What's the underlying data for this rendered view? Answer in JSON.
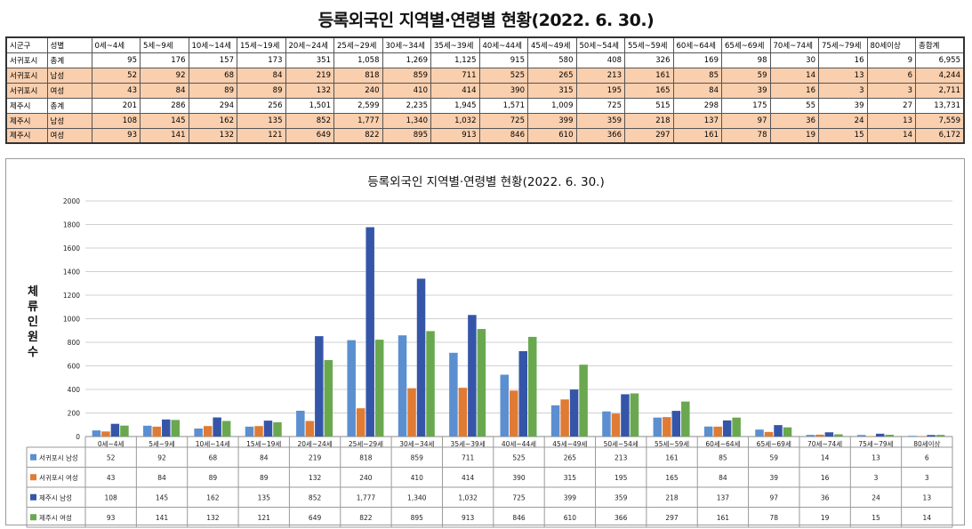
{
  "page_title": "등록외국인 지역별·연령별 현황(2022. 6. 30.)",
  "table": {
    "headers": [
      "시군구",
      "성별",
      "0세~4세",
      "5세~9세",
      "10세~14세",
      "15세~19세",
      "20세~24세",
      "25세~29세",
      "30세~34세",
      "35세~39세",
      "40세~44세",
      "45세~49세",
      "50세~54세",
      "55세~59세",
      "60세~64세",
      "65세~69세",
      "70세~74세",
      "75세~79세",
      "80세이상",
      "총합계"
    ],
    "rows": [
      {
        "region": "서귀포시",
        "gender": "총계",
        "values": [
          "95",
          "176",
          "157",
          "173",
          "351",
          "1,058",
          "1,269",
          "1,125",
          "915",
          "580",
          "408",
          "326",
          "169",
          "98",
          "30",
          "16",
          "9",
          "6,955"
        ]
      },
      {
        "region": "서귀포시",
        "gender": "남성",
        "values": [
          "52",
          "92",
          "68",
          "84",
          "219",
          "818",
          "859",
          "711",
          "525",
          "265",
          "213",
          "161",
          "85",
          "59",
          "14",
          "13",
          "6",
          "4,244"
        ]
      },
      {
        "region": "서귀포시",
        "gender": "여성",
        "values": [
          "43",
          "84",
          "89",
          "89",
          "132",
          "240",
          "410",
          "414",
          "390",
          "315",
          "195",
          "165",
          "84",
          "39",
          "16",
          "3",
          "3",
          "2,711"
        ]
      },
      {
        "region": "제주시",
        "gender": "총계",
        "values": [
          "201",
          "286",
          "294",
          "256",
          "1,501",
          "2,599",
          "2,235",
          "1,945",
          "1,571",
          "1,009",
          "725",
          "515",
          "298",
          "175",
          "55",
          "39",
          "27",
          "13,731"
        ]
      },
      {
        "region": "제주시",
        "gender": "남성",
        "values": [
          "108",
          "145",
          "162",
          "135",
          "852",
          "1,777",
          "1,340",
          "1,032",
          "725",
          "399",
          "359",
          "218",
          "137",
          "97",
          "36",
          "24",
          "13",
          "7,559"
        ]
      },
      {
        "region": "제주시",
        "gender": "여성",
        "values": [
          "93",
          "141",
          "132",
          "121",
          "649",
          "822",
          "895",
          "913",
          "846",
          "610",
          "366",
          "297",
          "161",
          "78",
          "19",
          "15",
          "14",
          "6,172"
        ]
      }
    ]
  },
  "chart_data": {
    "type": "bar",
    "title": "등록외국인 지역별·연령별 현황(2022. 6. 30.)",
    "ylabel": "체류인원수",
    "xlabel": "",
    "ylim": [
      0,
      2000
    ],
    "yticks": [
      0,
      200,
      400,
      600,
      800,
      1000,
      1200,
      1400,
      1600,
      1800,
      2000
    ],
    "grid": true,
    "legend": "data-table-left",
    "categories": [
      "0세~4세",
      "5세~9세",
      "10세~14세",
      "15세~19세",
      "20세~24세",
      "25세~29세",
      "30세~34세",
      "35세~39세",
      "40세~44세",
      "45세~49세",
      "50세~54세",
      "55세~59세",
      "60세~64세",
      "65세~69세",
      "70세~74세",
      "75세~79세",
      "80세이상"
    ],
    "series": [
      {
        "name": "서귀포시 남성",
        "color": "#5b8fd0",
        "values": [
          52,
          92,
          68,
          84,
          219,
          818,
          859,
          711,
          525,
          265,
          213,
          161,
          85,
          59,
          14,
          13,
          6
        ]
      },
      {
        "name": "서귀포시 여성",
        "color": "#e07b33",
        "values": [
          43,
          84,
          89,
          89,
          132,
          240,
          410,
          414,
          390,
          315,
          195,
          165,
          84,
          39,
          16,
          3,
          3
        ]
      },
      {
        "name": "제주시 남성",
        "color": "#3556a8",
        "values": [
          108,
          145,
          162,
          135,
          852,
          1777,
          1340,
          1032,
          725,
          399,
          359,
          218,
          137,
          97,
          36,
          24,
          13
        ]
      },
      {
        "name": "제주시 여성",
        "color": "#6aa84f",
        "values": [
          93,
          141,
          132,
          121,
          649,
          822,
          895,
          913,
          846,
          610,
          366,
          297,
          161,
          78,
          19,
          15,
          14
        ]
      }
    ],
    "data_table_labels": [
      [
        "52",
        "92",
        "68",
        "84",
        "219",
        "818",
        "859",
        "711",
        "525",
        "265",
        "213",
        "161",
        "85",
        "59",
        "14",
        "13",
        "6"
      ],
      [
        "43",
        "84",
        "89",
        "89",
        "132",
        "240",
        "410",
        "414",
        "390",
        "315",
        "195",
        "165",
        "84",
        "39",
        "16",
        "3",
        "3"
      ],
      [
        "108",
        "145",
        "162",
        "135",
        "852",
        "1,777",
        "1,340",
        "1,032",
        "725",
        "399",
        "359",
        "218",
        "137",
        "97",
        "36",
        "24",
        "13"
      ],
      [
        "93",
        "141",
        "132",
        "121",
        "649",
        "822",
        "895",
        "913",
        "846",
        "610",
        "366",
        "297",
        "161",
        "78",
        "19",
        "15",
        "14"
      ]
    ]
  }
}
